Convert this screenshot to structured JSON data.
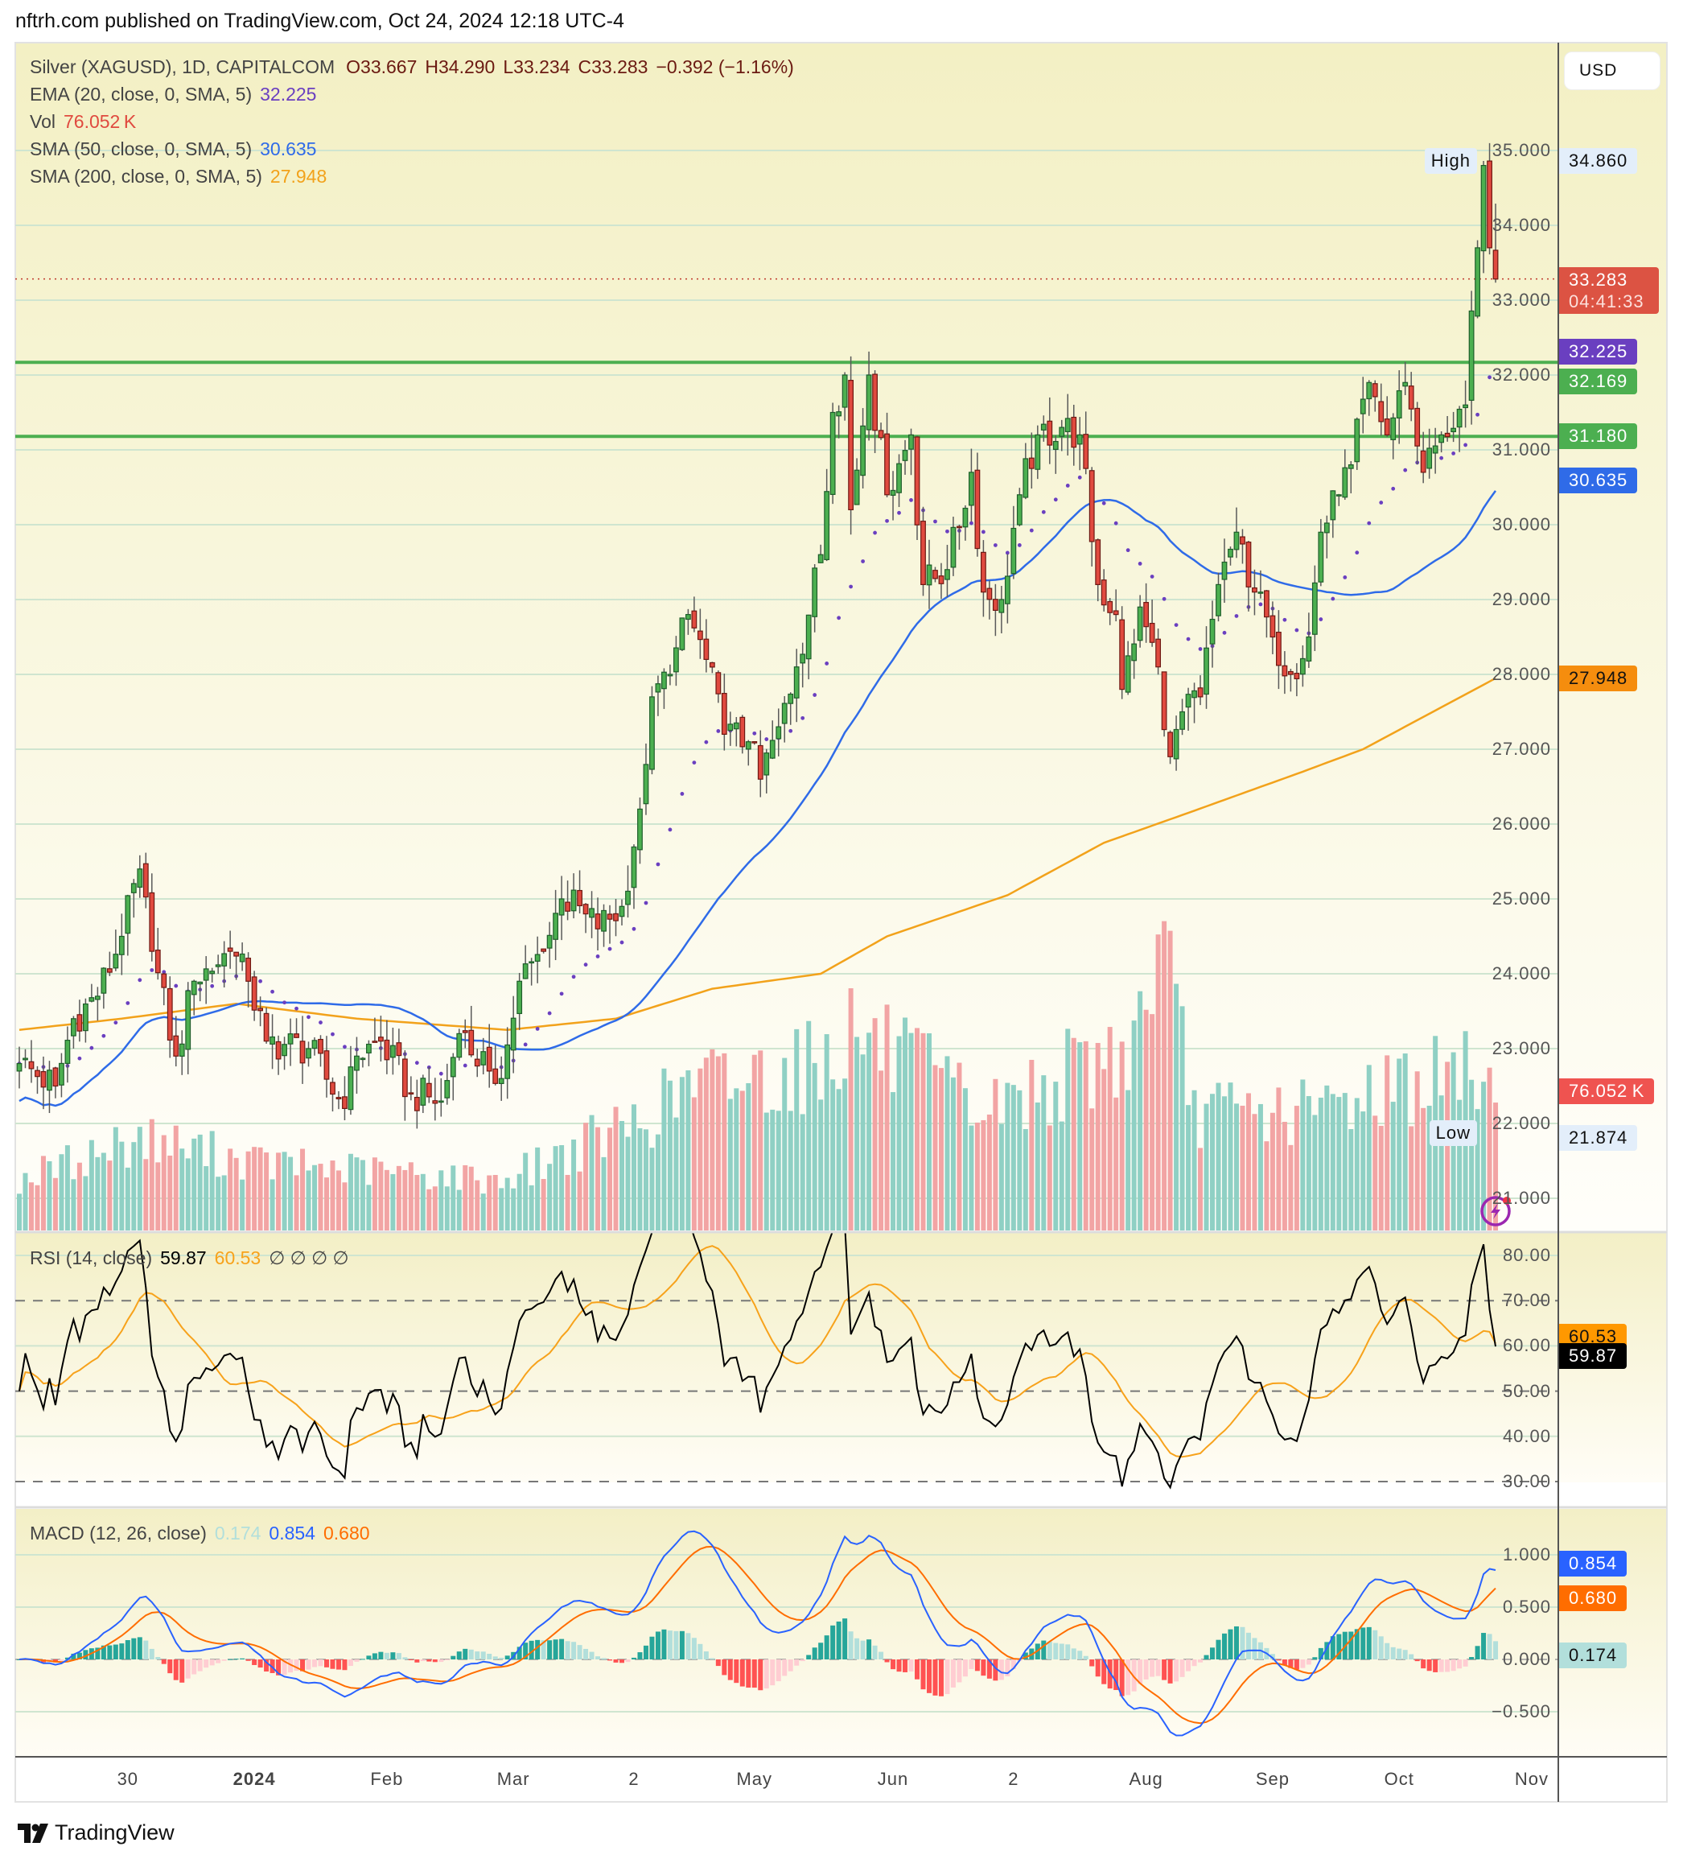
{
  "header": {
    "published": "nftrh.com published on TradingView.com, Oct 24, 2024 12:18 UTC-4"
  },
  "legend": {
    "symbol": "Silver (XAGUSD), 1D, CAPITALCOM",
    "open": "O33.667",
    "high": "H34.290",
    "low": "L33.234",
    "close": "C33.283",
    "change": "−0.392 (−1.16%)",
    "ema_label": "EMA (20, close, 0, SMA, 5)",
    "ema_value": "32.225",
    "vol_label": "Vol",
    "vol_value": "76.052 K",
    "sma50_label": "SMA (50, close, 0, SMA, 5)",
    "sma50_value": "30.635",
    "sma200_label": "SMA (200, close, 0, SMA, 5)",
    "sma200_value": "27.948"
  },
  "rsi_legend": {
    "label": "RSI (14, close)",
    "rsi": "59.87",
    "ma": "60.53",
    "extras": "∅ ∅ ∅ ∅"
  },
  "macd_legend": {
    "label": "MACD (12, 26, close)",
    "hist": "0.174",
    "macd": "0.854",
    "signal": "0.680"
  },
  "currency": "USD",
  "colors": {
    "up": "#4caf50",
    "down": "#e04a3f",
    "ema": "#6a3fc0",
    "sma50": "#2f6be8",
    "sma200": "#f2a21b",
    "level": "#4caf50",
    "rsi": "#000000",
    "rsi_ma": "#f7a21b",
    "macd": "#2962ff",
    "signal": "#ff6d00"
  },
  "price_axis": {
    "ticks": [
      "35.000",
      "34.000",
      "33.000",
      "32.000",
      "31.000",
      "30.000",
      "29.000",
      "28.000",
      "27.000",
      "26.000",
      "25.000",
      "24.000",
      "23.000",
      "22.000",
      "21.000"
    ]
  },
  "rsi_axis": {
    "ticks": [
      "80.00",
      "70.00",
      "60.00",
      "50.00",
      "40.00",
      "30.00"
    ]
  },
  "macd_axis": {
    "ticks": [
      "1.000",
      "0.500",
      "0.000",
      "−0.500"
    ]
  },
  "time_axis": {
    "labels": [
      {
        "text": "30",
        "bar": 18
      },
      {
        "text": "2024",
        "bar": 39
      },
      {
        "text": "Feb",
        "bar": 61
      },
      {
        "text": "Mar",
        "bar": 82
      },
      {
        "text": "2",
        "bar": 102
      },
      {
        "text": "May",
        "bar": 122
      },
      {
        "text": "Jun",
        "bar": 145
      },
      {
        "text": "2",
        "bar": 165
      },
      {
        "text": "Aug",
        "bar": 187
      },
      {
        "text": "Sep",
        "bar": 208
      },
      {
        "text": "Oct",
        "bar": 229
      },
      {
        "text": "Nov",
        "bar": 251
      }
    ]
  },
  "price_tags": {
    "high": {
      "label": "High",
      "value": "34.860",
      "price": 34.86
    },
    "last": {
      "value": "33.283",
      "countdown": "04:41:33",
      "price": 33.283
    },
    "ema": {
      "value": "32.225",
      "price": 32.225
    },
    "level1": {
      "value": "32.169",
      "price": 32.169
    },
    "level2": {
      "value": "31.180",
      "price": 31.18
    },
    "sma50": {
      "value": "30.635",
      "price": 30.635
    },
    "sma200": {
      "value": "27.948",
      "price": 27.948
    },
    "volume": {
      "value": "76.052 K",
      "price": 22.43
    },
    "low": {
      "label": "Low",
      "value": "21.874",
      "price": 21.874
    }
  },
  "rsi_tags": {
    "ma": {
      "value": "60.53",
      "level": 60.53
    },
    "rsi": {
      "value": "59.87",
      "level": 59.87
    }
  },
  "macd_tags": {
    "macd": {
      "value": "0.854",
      "level": 0.854
    },
    "signal": {
      "value": "0.680",
      "level": 0.68
    },
    "hist": {
      "value": "0.174",
      "level": 0.174
    }
  },
  "branding": {
    "logo_text": "TradingView"
  },
  "chart_data": {
    "type": "candlestick",
    "title": "Silver (XAGUSD), 1D, CAPITALCOM",
    "bars": 246,
    "ylim": [
      20.6,
      35.6
    ],
    "last_bar": {
      "open": 33.667,
      "high": 34.29,
      "low": 33.234,
      "close": 33.283
    },
    "close_anchors": [
      [
        0,
        22.8
      ],
      [
        6,
        22.5
      ],
      [
        9,
        23.4
      ],
      [
        13,
        23.7
      ],
      [
        17,
        24.5
      ],
      [
        20,
        25.4
      ],
      [
        22,
        24.3
      ],
      [
        26,
        22.9
      ],
      [
        29,
        23.9
      ],
      [
        35,
        24.3
      ],
      [
        38,
        23.9
      ],
      [
        41,
        23.1
      ],
      [
        48,
        23.0
      ],
      [
        54,
        22.2
      ],
      [
        56,
        22.9
      ],
      [
        60,
        23.1
      ],
      [
        65,
        22.4
      ],
      [
        70,
        22.3
      ],
      [
        73,
        23.2
      ],
      [
        78,
        22.7
      ],
      [
        80,
        22.6
      ],
      [
        83,
        23.9
      ],
      [
        87,
        24.3
      ],
      [
        90,
        25.0
      ],
      [
        94,
        24.8
      ],
      [
        96,
        24.6
      ],
      [
        100,
        24.9
      ],
      [
        103,
        26.2
      ],
      [
        105,
        27.7
      ],
      [
        108,
        28.0
      ],
      [
        111,
        28.8
      ],
      [
        114,
        28.2
      ],
      [
        117,
        27.2
      ],
      [
        121,
        27.1
      ],
      [
        123,
        26.6
      ],
      [
        126,
        27.3
      ],
      [
        129,
        28.1
      ],
      [
        133,
        29.6
      ],
      [
        135,
        31.5
      ],
      [
        137,
        32.0
      ],
      [
        138,
        30.2
      ],
      [
        141,
        32.0
      ],
      [
        144,
        30.4
      ],
      [
        148,
        31.2
      ],
      [
        150,
        29.2
      ],
      [
        154,
        29.4
      ],
      [
        158,
        30.7
      ],
      [
        160,
        29.1
      ],
      [
        163,
        29.0
      ],
      [
        166,
        30.4
      ],
      [
        169,
        31.2
      ],
      [
        173,
        31.3
      ],
      [
        176,
        31.2
      ],
      [
        179,
        29.2
      ],
      [
        182,
        28.8
      ],
      [
        183,
        27.8
      ],
      [
        186,
        28.9
      ],
      [
        189,
        28.1
      ],
      [
        191,
        26.9
      ],
      [
        193,
        27.5
      ],
      [
        196,
        27.7
      ],
      [
        199,
        29.2
      ],
      [
        202,
        29.9
      ],
      [
        205,
        29.1
      ],
      [
        208,
        28.5
      ],
      [
        211,
        28.0
      ],
      [
        214,
        28.5
      ],
      [
        216,
        29.9
      ],
      [
        219,
        30.4
      ],
      [
        221,
        30.8
      ],
      [
        224,
        31.9
      ],
      [
        227,
        31.2
      ],
      [
        230,
        31.9
      ],
      [
        233,
        30.7
      ],
      [
        236,
        31.2
      ],
      [
        240,
        31.6
      ],
      [
        242,
        33.7
      ],
      [
        243,
        34.8
      ],
      [
        244,
        33.7
      ],
      [
        245,
        33.283
      ]
    ],
    "volume_K_anchors": [
      [
        0,
        30
      ],
      [
        20,
        55
      ],
      [
        40,
        40
      ],
      [
        80,
        30
      ],
      [
        103,
        65
      ],
      [
        111,
        85
      ],
      [
        133,
        100
      ],
      [
        138,
        120
      ],
      [
        160,
        70
      ],
      [
        185,
        110
      ],
      [
        189,
        176
      ],
      [
        195,
        70
      ],
      [
        215,
        70
      ],
      [
        225,
        85
      ],
      [
        244,
        95
      ],
      [
        245,
        76.052
      ]
    ],
    "sma200_anchors": [
      [
        0,
        23.25
      ],
      [
        17,
        23.4
      ],
      [
        36,
        23.6
      ],
      [
        56,
        23.4
      ],
      [
        81,
        23.25
      ],
      [
        99,
        23.4
      ],
      [
        115,
        23.8
      ],
      [
        133,
        24.0
      ],
      [
        144,
        24.5
      ],
      [
        164,
        25.05
      ],
      [
        180,
        25.75
      ],
      [
        194,
        26.15
      ],
      [
        213,
        26.7
      ],
      [
        223,
        27.0
      ],
      [
        245,
        27.948
      ]
    ],
    "horizontal_levels": [
      32.169,
      31.18
    ],
    "rsi": {
      "period": 14,
      "levels": [
        70,
        50,
        30
      ],
      "ylim": [
        25,
        85
      ]
    },
    "macd": {
      "fast": 12,
      "slow": 26,
      "signal": 9,
      "ylim": [
        -0.75,
        1.15
      ]
    }
  }
}
